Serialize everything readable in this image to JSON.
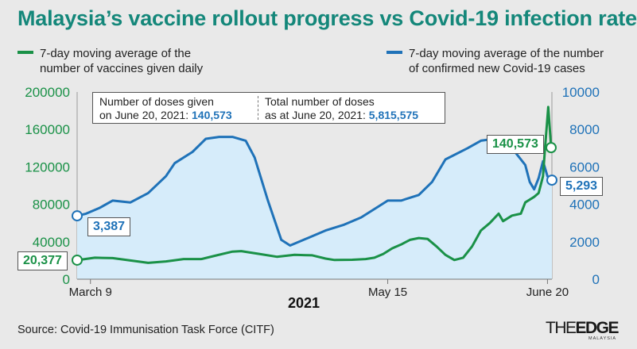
{
  "title": "Malaysia’s vaccine rollout progress vs Covid-19 infection rate",
  "legend": {
    "left": {
      "line1": "7-day moving average of the",
      "line2": "number of vaccines given daily",
      "color": "#1a9147"
    },
    "right": {
      "line1": "7-day moving average of the number",
      "line2": "of confirmed new Covid-19 cases",
      "color": "#1f72b8"
    }
  },
  "infobox": {
    "doses_line1": "Number of doses given",
    "doses_line2_prefix": "on June 20, 2021: ",
    "doses_value": "140,573",
    "total_line1": "Total number of doses",
    "total_line2_prefix": "as at June 20, 2021: ",
    "total_value": "5,815,575"
  },
  "callouts": {
    "vaccine_start": "20,377",
    "cases_start": "3,387",
    "vaccine_end": "140,573",
    "cases_end": "5,293"
  },
  "year_label": "2021",
  "source": "Source: Covid-19 Immunisation Task Force (CITF)",
  "logo": {
    "main_the": "THE",
    "main_edge": "EDGE",
    "sub": "MALAYSIA"
  },
  "chart_data": {
    "type": "line",
    "x_range": [
      "2021-03-06",
      "2021-06-21"
    ],
    "x_ticks": [
      {
        "label": "March 9",
        "date": "2021-03-09"
      },
      {
        "label": "May 15",
        "date": "2021-05-15"
      },
      {
        "label": "June 20",
        "date": "2021-06-20"
      }
    ],
    "y_left": {
      "ticks": [
        0,
        40000,
        80000,
        120000,
        160000,
        200000
      ],
      "labels": [
        "0",
        "40000",
        "80000",
        "120000",
        "160000",
        "200000"
      ],
      "range": [
        0,
        200000
      ],
      "color": "#1a9147"
    },
    "y_right": {
      "ticks": [
        0,
        2000,
        4000,
        6000,
        8000,
        10000
      ],
      "labels": [
        "0",
        "2000",
        "4000",
        "6000",
        "8000",
        "10000"
      ],
      "range": [
        0,
        10000
      ],
      "color": "#1f72b8"
    },
    "area_fill": "#d6ecfa",
    "series": [
      {
        "axis": "left",
        "color": "#1a9147",
        "points": [
          [
            "2021-03-06",
            20377
          ],
          [
            "2021-03-10",
            23000
          ],
          [
            "2021-03-14",
            22500
          ],
          [
            "2021-03-18",
            20000
          ],
          [
            "2021-03-22",
            17500
          ],
          [
            "2021-03-26",
            19000
          ],
          [
            "2021-03-30",
            21500
          ],
          [
            "2021-04-03",
            21500
          ],
          [
            "2021-04-06",
            25000
          ],
          [
            "2021-04-10",
            29500
          ],
          [
            "2021-04-12",
            30000
          ],
          [
            "2021-04-16",
            27000
          ],
          [
            "2021-04-20",
            24000
          ],
          [
            "2021-04-24",
            26000
          ],
          [
            "2021-04-28",
            25500
          ],
          [
            "2021-05-01",
            22000
          ],
          [
            "2021-05-03",
            20500
          ],
          [
            "2021-05-07",
            20800
          ],
          [
            "2021-05-10",
            21500
          ],
          [
            "2021-05-12",
            23000
          ],
          [
            "2021-05-14",
            27000
          ],
          [
            "2021-05-16",
            33000
          ],
          [
            "2021-05-18",
            37000
          ],
          [
            "2021-05-20",
            42000
          ],
          [
            "2021-05-22",
            44000
          ],
          [
            "2021-05-24",
            43000
          ],
          [
            "2021-05-26",
            35000
          ],
          [
            "2021-05-28",
            26000
          ],
          [
            "2021-05-30",
            20500
          ],
          [
            "2021-06-01",
            23000
          ],
          [
            "2021-06-03",
            35000
          ],
          [
            "2021-06-05",
            52000
          ],
          [
            "2021-06-07",
            60000
          ],
          [
            "2021-06-09",
            70000
          ],
          [
            "2021-06-10",
            62000
          ],
          [
            "2021-06-12",
            68000
          ],
          [
            "2021-06-14",
            70000
          ],
          [
            "2021-06-15",
            82000
          ],
          [
            "2021-06-17",
            88000
          ],
          [
            "2021-06-18",
            92000
          ],
          [
            "2021-06-19",
            110000
          ],
          [
            "2021-06-20",
            140573
          ],
          [
            "2021-06-20",
            184000
          ],
          [
            "2021-06-21",
            140573
          ]
        ]
      },
      {
        "axis": "right",
        "color": "#1f72b8",
        "points": [
          [
            "2021-03-06",
            3387
          ],
          [
            "2021-03-08",
            3500
          ],
          [
            "2021-03-11",
            3800
          ],
          [
            "2021-03-14",
            4200
          ],
          [
            "2021-03-18",
            4100
          ],
          [
            "2021-03-22",
            4600
          ],
          [
            "2021-03-26",
            5500
          ],
          [
            "2021-03-28",
            6200
          ],
          [
            "2021-04-01",
            6800
          ],
          [
            "2021-04-04",
            7500
          ],
          [
            "2021-04-07",
            7600
          ],
          [
            "2021-04-10",
            7600
          ],
          [
            "2021-04-13",
            7400
          ],
          [
            "2021-04-15",
            6500
          ],
          [
            "2021-04-18",
            4200
          ],
          [
            "2021-04-21",
            2100
          ],
          [
            "2021-04-23",
            1800
          ],
          [
            "2021-04-27",
            2200
          ],
          [
            "2021-05-01",
            2600
          ],
          [
            "2021-05-05",
            2900
          ],
          [
            "2021-05-09",
            3300
          ],
          [
            "2021-05-13",
            3900
          ],
          [
            "2021-05-15",
            4200
          ],
          [
            "2021-05-18",
            4200
          ],
          [
            "2021-05-22",
            4500
          ],
          [
            "2021-05-25",
            5200
          ],
          [
            "2021-05-28",
            6400
          ],
          [
            "2021-06-02",
            7000
          ],
          [
            "2021-06-05",
            7400
          ],
          [
            "2021-06-08",
            7500
          ],
          [
            "2021-06-11",
            7300
          ],
          [
            "2021-06-13",
            6700
          ],
          [
            "2021-06-15",
            6100
          ],
          [
            "2021-06-16",
            5200
          ],
          [
            "2021-06-17",
            4800
          ],
          [
            "2021-06-18",
            5400
          ],
          [
            "2021-06-19",
            6300
          ],
          [
            "2021-06-20",
            5500
          ],
          [
            "2021-06-21",
            5293
          ]
        ]
      }
    ]
  }
}
